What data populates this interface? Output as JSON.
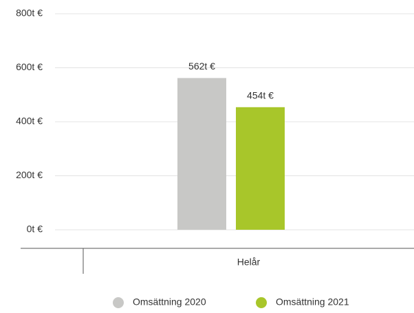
{
  "chart_data": {
    "type": "bar",
    "categories": [
      "Helår"
    ],
    "series": [
      {
        "name": "Omsättning 2020",
        "color": "#c8c8c6",
        "values": [
          562
        ],
        "value_labels": [
          "562t €"
        ]
      },
      {
        "name": "Omsättning 2021",
        "color": "#a8c62a",
        "values": [
          454
        ],
        "value_labels": [
          "454t €"
        ]
      }
    ],
    "ylim": [
      0,
      800
    ],
    "yticks": [
      {
        "value": 0,
        "label": "0t €"
      },
      {
        "value": 200,
        "label": "200t €"
      },
      {
        "value": 400,
        "label": "400t €"
      },
      {
        "value": 600,
        "label": "600t €"
      },
      {
        "value": 800,
        "label": "800t €"
      }
    ],
    "grid": true,
    "legend": "bottom"
  }
}
